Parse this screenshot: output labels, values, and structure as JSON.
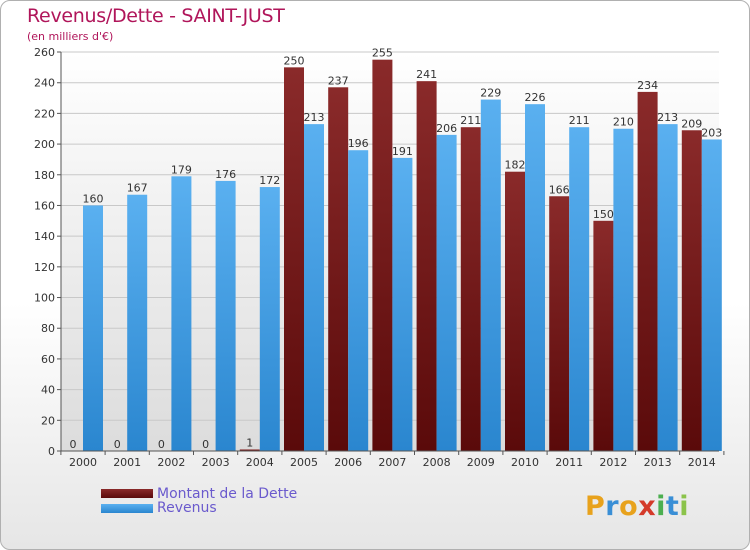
{
  "header": {
    "title": "Revenus/Dette - SAINT-JUST",
    "subtitle": "(en milliers d'€)"
  },
  "legend": {
    "items": [
      {
        "label": "Montant de la Dette",
        "color": "#7a1515"
      },
      {
        "label": "Revenus",
        "color": "#3d9ee6"
      }
    ]
  },
  "logo": {
    "text": "Proxiti",
    "letters": [
      {
        "ch": "P",
        "color": "#e8a21c"
      },
      {
        "ch": "r",
        "color": "#3a8fd6"
      },
      {
        "ch": "o",
        "color": "#e8a21c"
      },
      {
        "ch": "x",
        "color": "#d43a2a"
      },
      {
        "ch": "i",
        "color": "#4caf50"
      },
      {
        "ch": "t",
        "color": "#3a8fd6"
      },
      {
        "ch": "i",
        "color": "#8bc34a"
      }
    ]
  },
  "chart_data": {
    "type": "bar",
    "title": "Revenus/Dette - SAINT-JUST",
    "subtitle": "(en milliers d'€)",
    "categories": [
      "2000",
      "2001",
      "2002",
      "2003",
      "2004",
      "2005",
      "2006",
      "2007",
      "2008",
      "2009",
      "2010",
      "2011",
      "2012",
      "2013",
      "2014"
    ],
    "series": [
      {
        "name": "Montant de la Dette",
        "color": "#7a1515",
        "values": [
          0,
          0,
          0,
          0,
          1,
          250,
          237,
          255,
          241,
          211,
          182,
          166,
          150,
          234,
          209
        ]
      },
      {
        "name": "Revenus",
        "color": "#3d9ee6",
        "values": [
          160,
          167,
          179,
          176,
          172,
          213,
          196,
          191,
          206,
          229,
          226,
          211,
          210,
          213,
          203
        ]
      }
    ],
    "ylim": [
      0,
      260
    ],
    "yticks": [
      0,
      20,
      40,
      60,
      80,
      100,
      120,
      140,
      160,
      180,
      200,
      220,
      240,
      260
    ],
    "grid": true,
    "legend_position": "bottom-left"
  }
}
